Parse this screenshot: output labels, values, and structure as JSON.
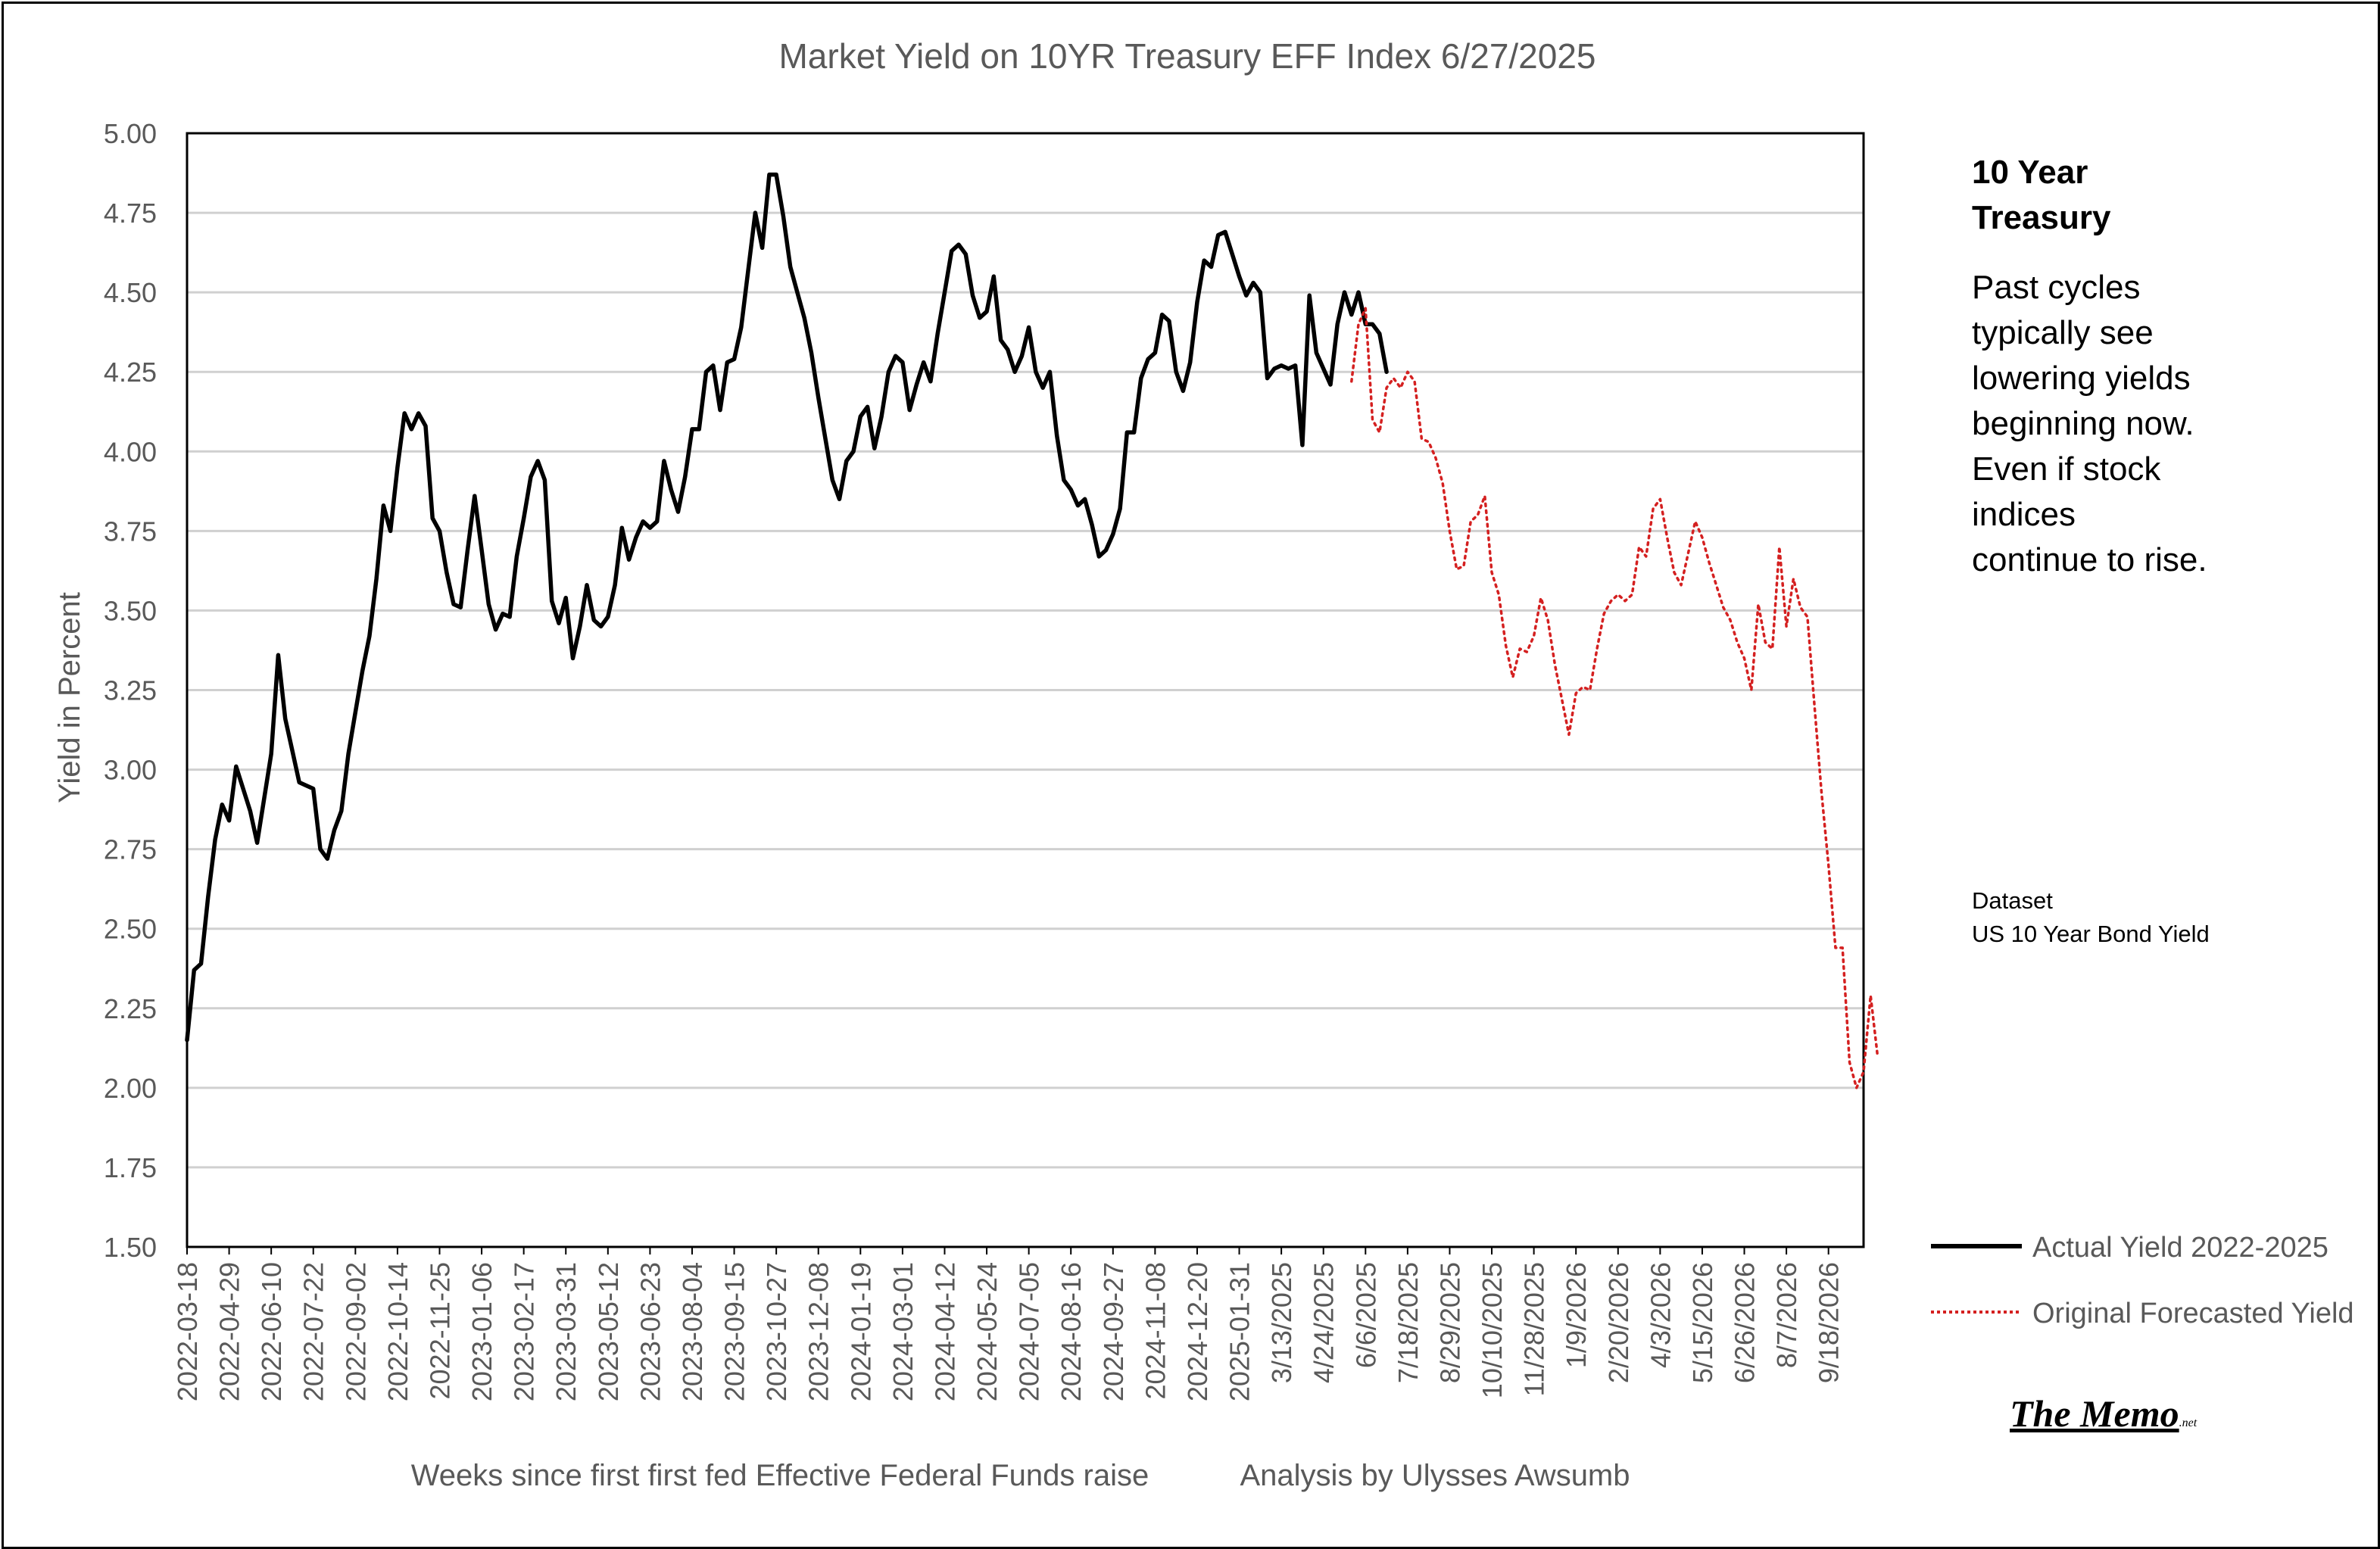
{
  "chart_data": {
    "type": "line",
    "title": "Market Yield on 10YR Treasury EFF Index 6/27/2025",
    "xlabel": "Weeks since first first fed Effective Federal Funds raise",
    "credit": "Analysis by Ulysses Awsumb",
    "ylabel": "Yield in Percent",
    "ylim": [
      1.5,
      5.0
    ],
    "y_ticks": [
      "1.50",
      "1.75",
      "2.00",
      "2.25",
      "2.50",
      "2.75",
      "3.00",
      "3.25",
      "3.50",
      "3.75",
      "4.00",
      "4.25",
      "4.50",
      "4.75",
      "5.00"
    ],
    "x_tick_labels": [
      "2022-03-18",
      "2022-04-29",
      "2022-06-10",
      "2022-07-22",
      "2022-09-02",
      "2022-10-14",
      "2022-11-25",
      "2023-01-06",
      "2023-02-17",
      "2023-03-31",
      "2023-05-12",
      "2023-06-23",
      "2023-08-04",
      "2023-09-15",
      "2023-10-27",
      "2023-12-08",
      "2024-01-19",
      "2024-03-01",
      "2024-04-12",
      "2024-05-24",
      "2024-07-05",
      "2024-08-16",
      "2024-09-27",
      "2024-11-08",
      "2024-12-20",
      "2025-01-31",
      "3/13/2025",
      "4/24/2025",
      "6/6/2025",
      "7/18/2025",
      "8/29/2025",
      "10/10/2025",
      "11/28/2025",
      "1/9/2026",
      "2/20/2026",
      "4/3/2026",
      "5/15/2026",
      "6/26/2026",
      "8/7/2026",
      "9/18/2026"
    ],
    "x_tick_every_weeks": 6,
    "week_count": 240,
    "grid": true,
    "legend_position": "right",
    "series": [
      {
        "name": "Actual Yield 2022-2025",
        "color": "#000000",
        "style": "solid",
        "week_start": 0,
        "values": [
          2.15,
          2.37,
          2.39,
          2.6,
          2.78,
          2.89,
          2.84,
          3.01,
          2.94,
          2.87,
          2.77,
          2.91,
          3.05,
          3.36,
          3.16,
          3.06,
          2.96,
          2.95,
          2.94,
          2.75,
          2.72,
          2.81,
          2.87,
          3.05,
          3.18,
          3.31,
          3.42,
          3.6,
          3.83,
          3.75,
          3.95,
          4.12,
          4.07,
          4.12,
          4.08,
          3.79,
          3.75,
          3.62,
          3.52,
          3.51,
          3.69,
          3.86,
          3.69,
          3.52,
          3.44,
          3.49,
          3.48,
          3.67,
          3.79,
          3.92,
          3.97,
          3.91,
          3.53,
          3.46,
          3.54,
          3.35,
          3.45,
          3.58,
          3.47,
          3.45,
          3.48,
          3.58,
          3.76,
          3.66,
          3.73,
          3.78,
          3.76,
          3.78,
          3.97,
          3.88,
          3.81,
          3.92,
          4.07,
          4.07,
          4.25,
          4.27,
          4.13,
          4.28,
          4.29,
          4.39,
          4.57,
          4.75,
          4.64,
          4.87,
          4.87,
          4.74,
          4.58,
          4.5,
          4.42,
          4.31,
          4.17,
          4.04,
          3.91,
          3.85,
          3.97,
          4.0,
          4.11,
          4.14,
          4.01,
          4.11,
          4.25,
          4.3,
          4.28,
          4.13,
          4.21,
          4.28,
          4.22,
          4.37,
          4.5,
          4.63,
          4.65,
          4.62,
          4.49,
          4.42,
          4.44,
          4.55,
          4.35,
          4.32,
          4.25,
          4.3,
          4.39,
          4.25,
          4.2,
          4.25,
          4.05,
          3.91,
          3.88,
          3.83,
          3.85,
          3.77,
          3.67,
          3.69,
          3.74,
          3.82,
          4.06,
          4.06,
          4.23,
          4.29,
          4.31,
          4.43,
          4.41,
          4.25,
          4.19,
          4.28,
          4.47,
          4.6,
          4.58,
          4.68,
          4.69,
          4.62,
          4.55,
          4.49,
          4.53,
          4.5,
          4.23,
          4.26,
          4.27,
          4.26,
          4.27,
          4.02,
          4.49,
          4.31,
          4.26,
          4.21,
          4.4,
          4.5,
          4.43,
          4.5,
          4.4,
          4.4,
          4.37,
          4.25
        ]
      },
      {
        "name": "Original Forecasted Yield",
        "color": "#d42020",
        "style": "dotted",
        "week_start": 166,
        "values": [
          4.22,
          4.4,
          4.45,
          4.1,
          4.06,
          4.2,
          4.23,
          4.2,
          4.25,
          4.22,
          4.04,
          4.03,
          3.98,
          3.9,
          3.75,
          3.63,
          3.64,
          3.78,
          3.8,
          3.86,
          3.62,
          3.55,
          3.39,
          3.29,
          3.38,
          3.37,
          3.42,
          3.54,
          3.47,
          3.33,
          3.22,
          3.11,
          3.24,
          3.26,
          3.25,
          3.38,
          3.49,
          3.53,
          3.55,
          3.53,
          3.55,
          3.7,
          3.67,
          3.82,
          3.85,
          3.73,
          3.62,
          3.58,
          3.68,
          3.78,
          3.73,
          3.65,
          3.58,
          3.51,
          3.47,
          3.4,
          3.35,
          3.25,
          3.52,
          3.4,
          3.38,
          3.7,
          3.45,
          3.6,
          3.51,
          3.48,
          3.2,
          2.93,
          2.7,
          2.44,
          2.44,
          2.08,
          2.0,
          2.05,
          2.29,
          2.1
        ]
      }
    ]
  },
  "legend": [
    {
      "label": "Actual Yield 2022-2025",
      "color": "#000000",
      "style": "solid"
    },
    {
      "label": "Original Forecasted Yield",
      "color": "#d42020",
      "style": "dotted"
    }
  ],
  "sidebar": {
    "title_line1": "10 Year",
    "title_line2": "Treasury",
    "body_lines": [
      "Past cycles",
      "typically see",
      "lowering yields",
      "beginning now.",
      "Even if stock",
      "indices",
      "continue to rise."
    ]
  },
  "dataset": {
    "label": "Dataset",
    "value": "US 10 Year Bond Yield"
  },
  "logo": {
    "main": "The Memo",
    "suffix": ".net"
  }
}
